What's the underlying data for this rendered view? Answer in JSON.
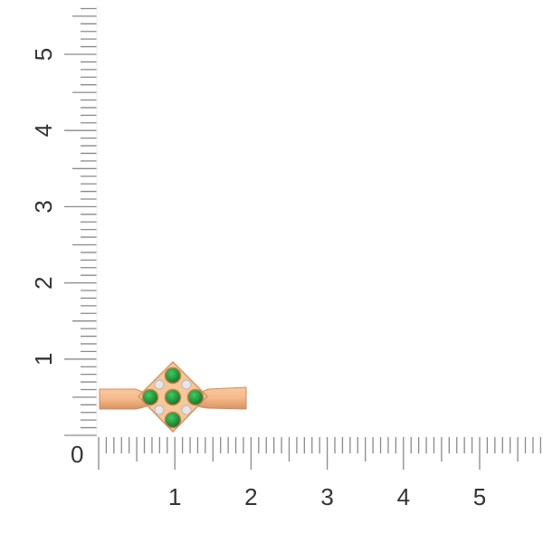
{
  "ruler": {
    "unit_labels_vertical": [
      "0",
      "1",
      "2",
      "3",
      "4",
      "5"
    ],
    "unit_labels_horizontal": [
      "1",
      "2",
      "3",
      "4",
      "5"
    ],
    "zero_label": "0",
    "subdivisions": 10,
    "tick_color": "#8a8a8a"
  },
  "product": {
    "metal_color": "#f0b88a",
    "gem_color": "#1e9a3c",
    "accent_stone_color": "#e6e6e6",
    "center_stones": 5,
    "accent_stones": 4
  }
}
